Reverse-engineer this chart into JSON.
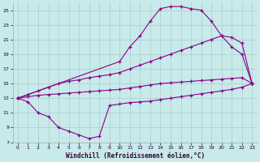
{
  "xlabel": "Windchill (Refroidissement éolien,°C)",
  "background_color": "#c8eaea",
  "grid_color": "#aacccc",
  "line_color": "#880088",
  "xlim": [
    -0.5,
    23.5
  ],
  "ylim": [
    7,
    26
  ],
  "xticks": [
    0,
    1,
    2,
    3,
    4,
    5,
    6,
    7,
    8,
    9,
    10,
    11,
    12,
    13,
    14,
    15,
    16,
    17,
    18,
    19,
    20,
    21,
    22,
    23
  ],
  "yticks": [
    7,
    9,
    11,
    13,
    15,
    17,
    19,
    21,
    23,
    25
  ],
  "curve_top_x": [
    0,
    10,
    11,
    12,
    13,
    14,
    15,
    16,
    17,
    18,
    19,
    20,
    21,
    22,
    23
  ],
  "curve_top_y": [
    13,
    18,
    20,
    21.5,
    23.5,
    25.2,
    25.5,
    25.5,
    25.2,
    25.0,
    23.5,
    21.5,
    20.0,
    19.0,
    15.0
  ],
  "curve_mid_up_x": [
    0,
    1,
    2,
    3,
    4,
    5,
    6,
    7,
    8,
    9,
    10,
    11,
    12,
    13,
    14,
    15,
    16,
    17,
    18,
    19,
    20,
    21,
    22,
    23
  ],
  "curve_mid_up_y": [
    13,
    13.5,
    14,
    14.5,
    15,
    15.3,
    15.5,
    15.8,
    16,
    16.2,
    16.5,
    17,
    17.5,
    18,
    18.5,
    19,
    19.5,
    20,
    20.5,
    21,
    21.5,
    21.3,
    20.5,
    15.0
  ],
  "curve_mid_lo_x": [
    0,
    1,
    2,
    3,
    4,
    5,
    6,
    7,
    8,
    9,
    10,
    11,
    12,
    13,
    14,
    15,
    16,
    17,
    18,
    19,
    20,
    21,
    22,
    23
  ],
  "curve_mid_lo_y": [
    13,
    13.2,
    13.4,
    13.5,
    13.6,
    13.7,
    13.8,
    13.9,
    14,
    14.1,
    14.2,
    14.4,
    14.6,
    14.8,
    15.0,
    15.1,
    15.2,
    15.3,
    15.4,
    15.5,
    15.6,
    15.7,
    15.8,
    15.0
  ],
  "curve_bot_x": [
    0,
    1,
    2,
    3,
    4,
    5,
    6,
    7,
    8,
    9,
    10,
    11,
    12,
    13,
    14,
    15,
    16,
    17,
    18,
    19,
    20,
    21,
    22,
    23
  ],
  "curve_bot_y": [
    13,
    12.5,
    11.0,
    10.5,
    9.0,
    8.5,
    8.0,
    7.5,
    7.8,
    12.0,
    12.2,
    12.4,
    12.5,
    12.6,
    12.8,
    13.0,
    13.2,
    13.4,
    13.6,
    13.8,
    14.0,
    14.2,
    14.5,
    15.0
  ],
  "figsize": [
    3.2,
    2.0
  ],
  "dpi": 100
}
